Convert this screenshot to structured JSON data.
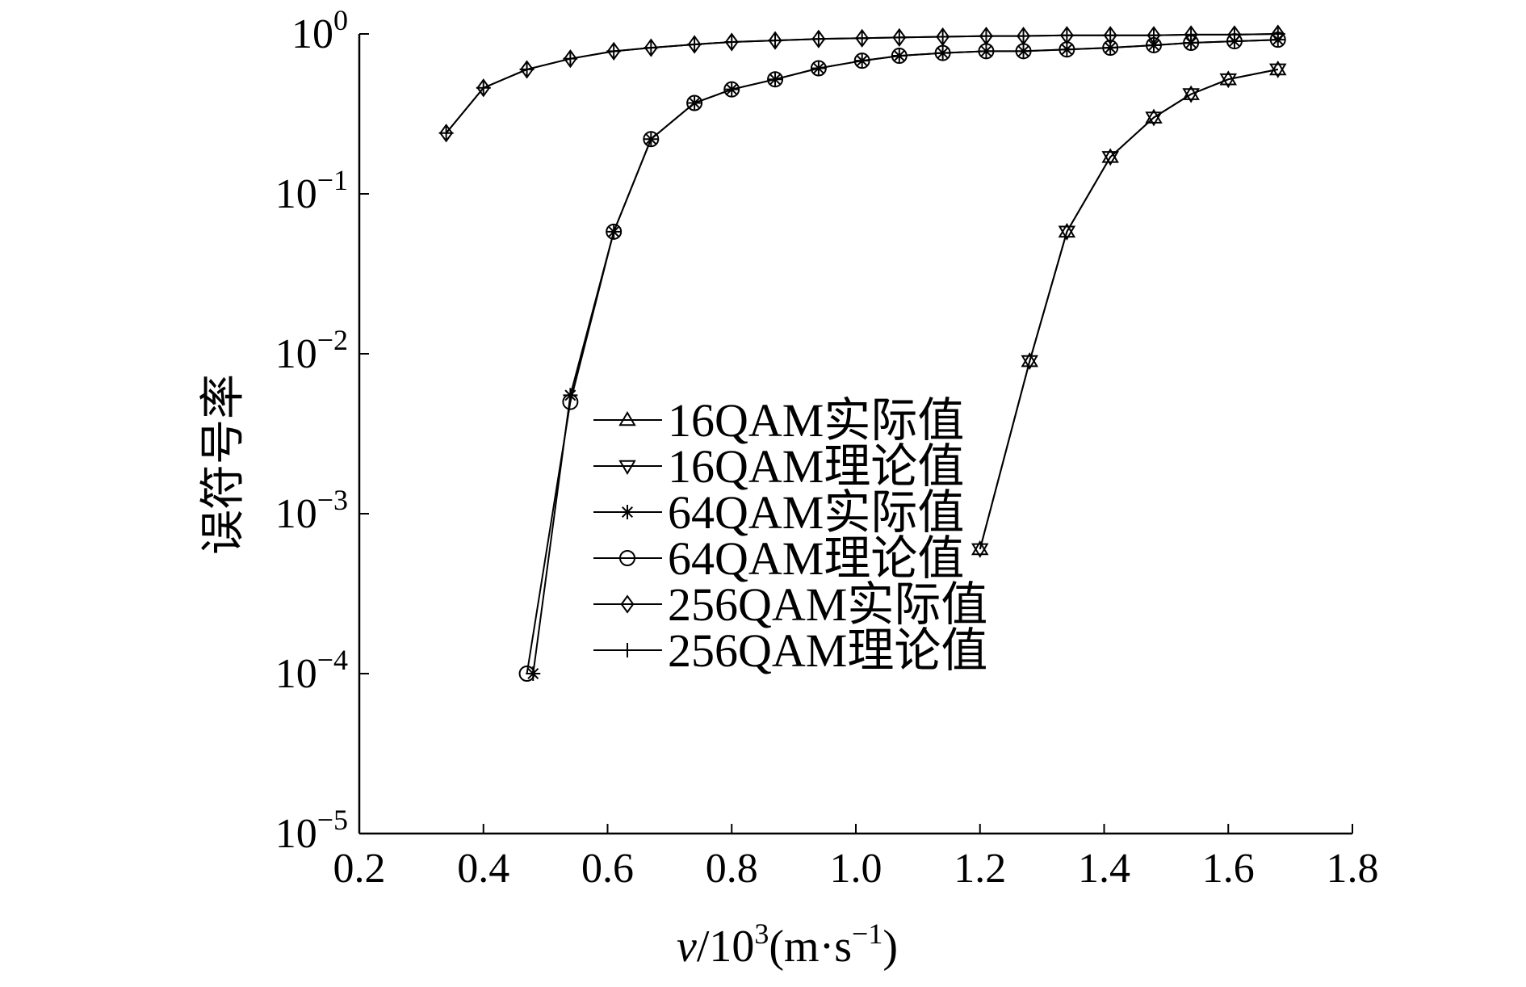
{
  "chart_data": {
    "type": "line",
    "title": "",
    "xlabel": "v/10³(m·s⁻¹)",
    "ylabel": "误符号率",
    "xlim": [
      0.2,
      1.8
    ],
    "ylim": [
      1e-05,
      1
    ],
    "yscale": "log",
    "grid": false,
    "legend_position": "center",
    "x_ticks": [
      "0.2",
      "0.4",
      "0.6",
      "0.8",
      "1.0",
      "1.2",
      "1.4",
      "1.6",
      "1.8"
    ],
    "y_ticks": [
      {
        "base": "10",
        "exp": "−5",
        "value": 1e-05
      },
      {
        "base": "10",
        "exp": "−4",
        "value": 0.0001
      },
      {
        "base": "10",
        "exp": "−3",
        "value": 0.001
      },
      {
        "base": "10",
        "exp": "−2",
        "value": 0.01
      },
      {
        "base": "10",
        "exp": "−1",
        "value": 0.1
      },
      {
        "base": "10",
        "exp": "0",
        "value": 1
      }
    ],
    "series": [
      {
        "name": "16QAM实际值",
        "marker": "triangle-up",
        "x": [
          1.2,
          1.28,
          1.34,
          1.41,
          1.48,
          1.54,
          1.6,
          1.68
        ],
        "y": [
          0.0006,
          0.009,
          0.058,
          0.17,
          0.3,
          0.42,
          0.52,
          0.6
        ]
      },
      {
        "name": "16QAM理论值",
        "marker": "triangle-down",
        "x": [
          1.2,
          1.28,
          1.34,
          1.41,
          1.48,
          1.54,
          1.6,
          1.68
        ],
        "y": [
          0.0006,
          0.009,
          0.058,
          0.17,
          0.3,
          0.42,
          0.52,
          0.6
        ]
      },
      {
        "name": "64QAM实际值",
        "marker": "asterisk",
        "x": [
          0.48,
          0.54,
          0.61,
          0.67,
          0.74,
          0.8,
          0.87,
          0.94,
          1.01,
          1.07,
          1.14,
          1.21,
          1.27,
          1.34,
          1.41,
          1.48,
          1.54,
          1.61,
          1.68
        ],
        "y": [
          0.0001,
          0.0055,
          0.058,
          0.22,
          0.37,
          0.45,
          0.52,
          0.61,
          0.68,
          0.73,
          0.76,
          0.78,
          0.78,
          0.8,
          0.82,
          0.85,
          0.88,
          0.9,
          0.92
        ]
      },
      {
        "name": "64QAM理论值",
        "marker": "circle",
        "x": [
          0.47,
          0.54,
          0.61,
          0.67,
          0.74,
          0.8,
          0.87,
          0.94,
          1.01,
          1.07,
          1.14,
          1.21,
          1.27,
          1.34,
          1.41,
          1.48,
          1.54,
          1.61,
          1.68
        ],
        "y": [
          0.0001,
          0.005,
          0.058,
          0.22,
          0.37,
          0.45,
          0.52,
          0.61,
          0.68,
          0.73,
          0.76,
          0.78,
          0.78,
          0.8,
          0.82,
          0.85,
          0.88,
          0.9,
          0.92
        ]
      },
      {
        "name": "256QAM实际值",
        "marker": "diamond",
        "x": [
          0.34,
          0.4,
          0.47,
          0.54,
          0.61,
          0.67,
          0.74,
          0.8,
          0.87,
          0.94,
          1.01,
          1.07,
          1.14,
          1.21,
          1.27,
          1.34,
          1.41,
          1.48,
          1.54,
          1.61,
          1.68
        ],
        "y": [
          0.24,
          0.46,
          0.6,
          0.7,
          0.78,
          0.82,
          0.86,
          0.89,
          0.91,
          0.93,
          0.94,
          0.95,
          0.96,
          0.97,
          0.97,
          0.98,
          0.98,
          0.98,
          0.99,
          0.99,
          1.0
        ]
      },
      {
        "name": "256QAM理论值",
        "marker": "plus",
        "x": [
          0.34,
          0.4,
          0.47,
          0.54,
          0.61,
          0.67,
          0.74,
          0.8,
          0.87,
          0.94,
          1.01,
          1.07,
          1.14,
          1.21,
          1.27,
          1.34,
          1.41,
          1.48,
          1.54,
          1.61,
          1.68
        ],
        "y": [
          0.24,
          0.46,
          0.6,
          0.7,
          0.78,
          0.82,
          0.86,
          0.89,
          0.91,
          0.93,
          0.94,
          0.95,
          0.96,
          0.97,
          0.97,
          0.98,
          0.98,
          0.98,
          0.99,
          0.99,
          1.0
        ]
      }
    ]
  }
}
